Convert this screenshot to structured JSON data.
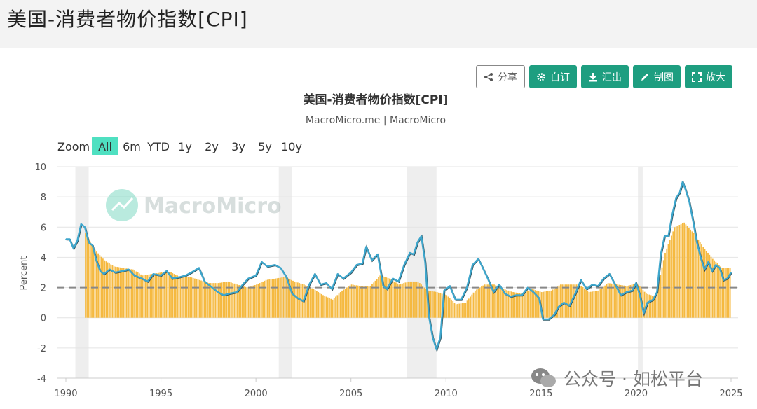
{
  "page": {
    "title": "美国-消费者物价指数[CPI]"
  },
  "toolbar": {
    "share_label": "分享",
    "custom_label": "自订",
    "export_label": "汇出",
    "draw_label": "制图",
    "expand_label": "放大"
  },
  "zoom": {
    "label": "Zoom",
    "options": [
      "All",
      "6m",
      "YTD",
      "1y",
      "2y",
      "3y",
      "5y",
      "10y"
    ],
    "active": "All"
  },
  "brand_watermark": "MacroMicro",
  "social_watermark": {
    "text": "公众号 · 如松平台"
  },
  "colors": {
    "accent": "#1e9e80",
    "cpi_line": "#3ea6cc",
    "bars": "#f5b940",
    "recession": "#eeeeee",
    "reference": "#888888"
  },
  "chart_data": {
    "type": "line",
    "title": "美国-消费者物价指数[CPI]",
    "subtitle": "MacroMicro.me | MacroMicro",
    "ylabel": "Percent",
    "xlabel": "",
    "xlim": [
      1990,
      2025
    ],
    "ylim": [
      -4,
      10
    ],
    "x_ticks": [
      "1990",
      "1995",
      "2000",
      "2005",
      "2010",
      "2015",
      "2020",
      "2025"
    ],
    "y_ticks": [
      -4,
      -2,
      0,
      2,
      4,
      6,
      8,
      10
    ],
    "reference_line": 2,
    "recession_periods": [
      [
        1990.5,
        1991.2
      ],
      [
        2001.2,
        2001.9
      ],
      [
        2007.95,
        2009.5
      ],
      [
        2020.1,
        2020.35
      ]
    ],
    "series": [
      {
        "type": "line",
        "x": [
          1990.0,
          1990.2,
          1990.4,
          1990.6,
          1990.8,
          1991.0,
          1991.2,
          1991.4,
          1991.6,
          1991.8,
          1992.0,
          1992.3,
          1992.6,
          1993.0,
          1993.3,
          1993.6,
          1994.0,
          1994.3,
          1994.6,
          1995.0,
          1995.3,
          1995.6,
          1996.0,
          1996.3,
          1996.6,
          1997.0,
          1997.3,
          1997.6,
          1998.0,
          1998.3,
          1998.6,
          1999.0,
          1999.3,
          1999.6,
          2000.0,
          2000.3,
          2000.6,
          2001.0,
          2001.3,
          2001.6,
          2001.9,
          2002.2,
          2002.5,
          2002.8,
          2003.1,
          2003.4,
          2003.7,
          2004.0,
          2004.3,
          2004.6,
          2005.0,
          2005.3,
          2005.6,
          2005.8,
          2006.1,
          2006.4,
          2006.7,
          2006.9,
          2007.2,
          2007.5,
          2007.8,
          2008.1,
          2008.3,
          2008.5,
          2008.7,
          2008.9,
          2009.1,
          2009.3,
          2009.5,
          2009.7,
          2009.9,
          2010.2,
          2010.5,
          2010.8,
          2011.1,
          2011.4,
          2011.7,
          2011.9,
          2012.2,
          2012.5,
          2012.8,
          2013.1,
          2013.4,
          2013.7,
          2014.0,
          2014.3,
          2014.6,
          2014.9,
          2015.1,
          2015.4,
          2015.7,
          2015.9,
          2016.2,
          2016.5,
          2016.8,
          2017.1,
          2017.4,
          2017.7,
          2018.0,
          2018.3,
          2018.6,
          2018.9,
          2019.2,
          2019.5,
          2019.8,
          2020.0,
          2020.2,
          2020.4,
          2020.6,
          2020.9,
          2021.1,
          2021.3,
          2021.5,
          2021.7,
          2021.9,
          2022.1,
          2022.3,
          2022.45,
          2022.6,
          2022.8,
          2023.0,
          2023.2,
          2023.4,
          2023.6,
          2023.8,
          2024.0,
          2024.2,
          2024.4,
          2024.6,
          2024.8,
          2025.0
        ],
        "y": [
          5.2,
          5.2,
          4.6,
          5.1,
          6.2,
          6.0,
          5.0,
          4.8,
          3.8,
          3.1,
          2.9,
          3.2,
          3.0,
          3.1,
          3.2,
          2.8,
          2.6,
          2.4,
          2.9,
          2.8,
          3.1,
          2.6,
          2.7,
          2.8,
          3.0,
          3.3,
          2.4,
          2.1,
          1.7,
          1.5,
          1.6,
          1.7,
          2.2,
          2.6,
          2.8,
          3.7,
          3.4,
          3.5,
          3.3,
          2.7,
          1.6,
          1.3,
          1.1,
          2.2,
          2.9,
          2.2,
          2.3,
          1.9,
          2.9,
          2.6,
          3.0,
          3.5,
          3.6,
          4.7,
          3.8,
          4.2,
          2.1,
          1.9,
          2.6,
          2.4,
          3.5,
          4.3,
          4.2,
          5.0,
          5.4,
          3.7,
          0.1,
          -1.3,
          -2.1,
          -1.3,
          1.8,
          2.1,
          1.2,
          1.2,
          2.0,
          3.5,
          3.9,
          3.4,
          2.6,
          1.7,
          2.2,
          1.6,
          1.4,
          1.5,
          1.5,
          2.0,
          1.7,
          1.3,
          -0.1,
          -0.1,
          0.2,
          0.7,
          1.0,
          0.8,
          1.6,
          2.5,
          1.9,
          2.2,
          2.1,
          2.6,
          2.9,
          2.2,
          1.5,
          1.7,
          1.8,
          2.3,
          1.5,
          0.3,
          1.0,
          1.2,
          1.7,
          4.2,
          5.4,
          5.4,
          6.8,
          7.9,
          8.3,
          9.0,
          8.5,
          7.7,
          6.4,
          5.0,
          4.0,
          3.2,
          3.7,
          3.1,
          3.5,
          3.3,
          2.5,
          2.6,
          3.0
        ]
      },
      {
        "type": "bar",
        "values_note": "Core CPI YoY bars",
        "x": [
          1991.0,
          1991.5,
          1992.0,
          1992.5,
          1993.0,
          1993.5,
          1994.0,
          1994.5,
          1995.0,
          1995.5,
          1996.0,
          1996.5,
          1997.0,
          1997.5,
          1998.0,
          1998.5,
          1999.0,
          1999.5,
          2000.0,
          2000.5,
          2001.0,
          2001.5,
          2002.0,
          2002.5,
          2003.0,
          2003.5,
          2004.0,
          2004.5,
          2005.0,
          2005.5,
          2006.0,
          2006.5,
          2007.0,
          2007.5,
          2008.0,
          2008.5,
          2009.0,
          2009.5,
          2010.0,
          2010.5,
          2011.0,
          2011.5,
          2012.0,
          2012.5,
          2013.0,
          2013.5,
          2014.0,
          2014.5,
          2015.0,
          2015.5,
          2016.0,
          2016.5,
          2017.0,
          2017.5,
          2018.0,
          2018.5,
          2019.0,
          2019.5,
          2020.0,
          2020.5,
          2021.0,
          2021.5,
          2022.0,
          2022.5,
          2023.0,
          2023.5,
          2024.0,
          2024.5,
          2025.0
        ],
        "y": [
          5.6,
          4.5,
          3.8,
          3.4,
          3.3,
          3.2,
          2.8,
          2.9,
          3.0,
          3.0,
          2.7,
          2.7,
          2.5,
          2.3,
          2.3,
          2.4,
          2.2,
          2.0,
          2.2,
          2.5,
          2.6,
          2.7,
          2.4,
          2.2,
          1.9,
          1.5,
          1.2,
          1.8,
          2.2,
          2.1,
          2.1,
          2.8,
          2.6,
          2.2,
          2.4,
          2.4,
          1.8,
          1.7,
          1.5,
          0.9,
          1.0,
          1.8,
          2.2,
          2.2,
          1.9,
          1.7,
          1.6,
          1.9,
          1.7,
          1.8,
          2.2,
          2.2,
          2.2,
          1.7,
          1.8,
          2.3,
          2.2,
          2.1,
          2.3,
          1.6,
          1.4,
          4.3,
          6.0,
          6.3,
          5.6,
          4.7,
          3.9,
          3.3,
          3.3
        ]
      }
    ]
  }
}
